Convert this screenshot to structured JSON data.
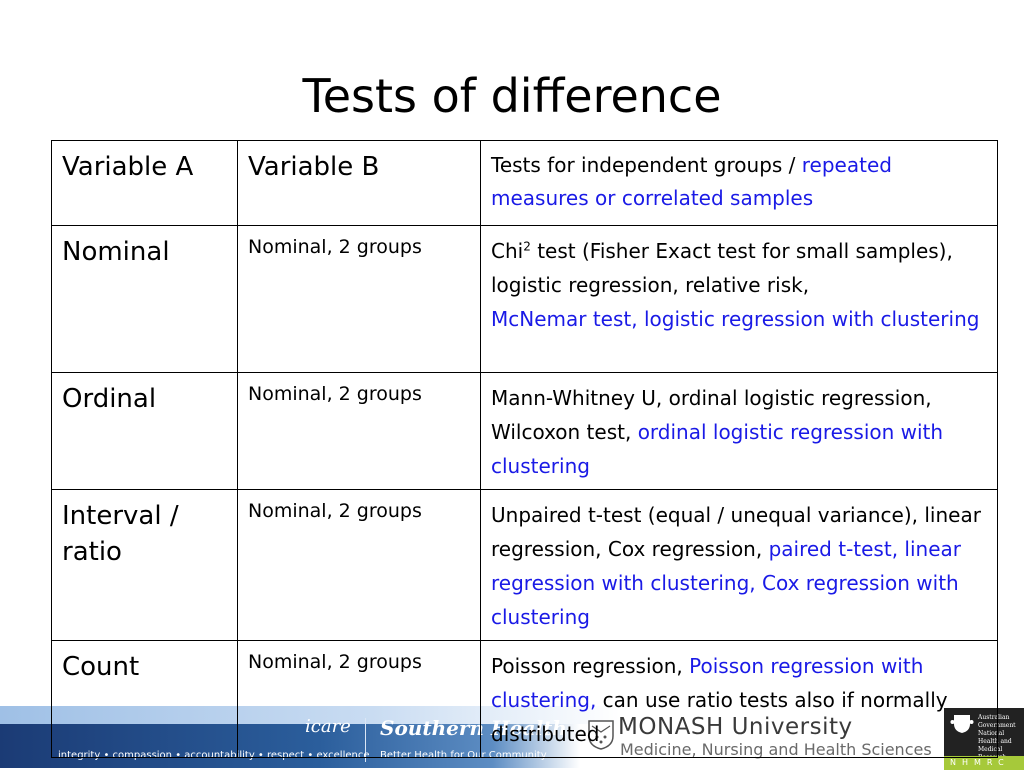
{
  "title": "Tests of difference",
  "table": {
    "header": {
      "col_a": "Variable A",
      "col_b": "Variable B",
      "col_c_black": "Tests for independent groups / ",
      "col_c_blue": "repeated measures or correlated samples"
    },
    "rows": [
      {
        "var_a": "Nominal",
        "var_b": "Nominal, 2 groups",
        "tests_pre": "Chi",
        "tests_sup": "2",
        "tests_black": " test (Fisher Exact test for small samples), logistic regression, relative risk,",
        "tests_blue": "McNemar test, logistic regression with clustering",
        "tests_tail": ""
      },
      {
        "var_a": "Ordinal",
        "var_b": "Nominal, 2 groups",
        "tests_pre": "",
        "tests_sup": "",
        "tests_black": "Mann-Whitney U, ordinal logistic regression, Wilcoxon test, ",
        "tests_blue": "ordinal logistic regression with clustering",
        "tests_tail": ""
      },
      {
        "var_a": "Interval / ratio",
        "var_b": "Nominal, 2 groups",
        "tests_pre": "",
        "tests_sup": "",
        "tests_black": "Unpaired t-test (equal / unequal variance), linear regression, Cox regression, ",
        "tests_blue": "paired t-test, linear regression with clustering, Cox regression with clustering",
        "tests_tail": ""
      },
      {
        "var_a": "Count",
        "var_b": "Nominal, 2 groups",
        "tests_pre": "",
        "tests_sup": "",
        "tests_black": "Poisson regression, ",
        "tests_blue": "Poisson regression with clustering,",
        "tests_tail": " can use ratio tests also if normally distributed"
      }
    ]
  },
  "footer": {
    "icare": "icare",
    "southern_health": "Southern Health",
    "values": "integrity • compassion • accountability • respect • excellence",
    "better_health": "Better Health for Our Community",
    "monash": "MONASH University",
    "monash_sub": "Medicine, Nursing and Health Sciences",
    "nhmrc_text": "Australian Government National Health and Medical Research Council",
    "nhmrc_letters": "NHMRC"
  },
  "colors": {
    "blue_text": "#1a1ae6",
    "banner_dark": "#1b3b75",
    "nhmrc_green": "#a6c93a"
  }
}
